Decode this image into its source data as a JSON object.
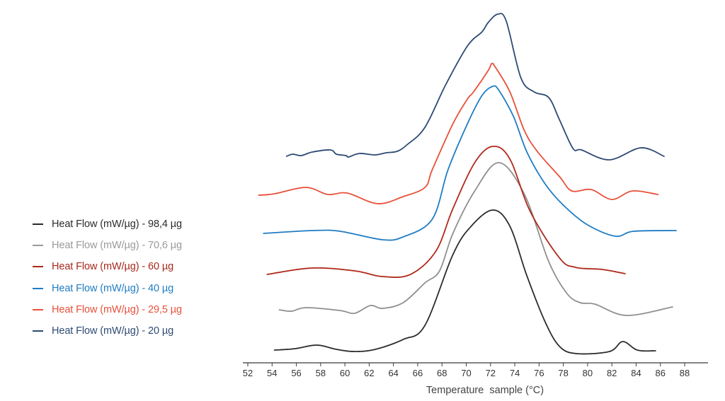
{
  "chart_data": {
    "type": "line",
    "title": "",
    "xlabel": "Temperature  sample (°C)",
    "ylabel": "",
    "xlim": [
      51.5,
      90.8
    ],
    "ylim": [
      0,
      100
    ],
    "y_units": "relative heat flow (stacked, arbitrary units)",
    "grid": false,
    "legend_position": "left",
    "x_ticks": [
      "52",
      "54",
      "56",
      "58",
      "60",
      "62",
      "64",
      "66",
      "68",
      "70",
      "72",
      "74",
      "76",
      "78",
      "80",
      "82",
      "84",
      "86",
      "88"
    ],
    "series": [
      {
        "name": "Heat Flow (mW/µg) - 98,4 µg",
        "color": "#2b2b2b",
        "legend_color": "#2b2b2b",
        "dotted": true,
        "points": [
          [
            54.2,
            3.6
          ],
          [
            55.9,
            4.0
          ],
          [
            57.7,
            5.0
          ],
          [
            59.3,
            3.8
          ],
          [
            60.8,
            3.2
          ],
          [
            62.5,
            3.8
          ],
          [
            64.8,
            6.6
          ],
          [
            66.6,
            10.6
          ],
          [
            68.9,
            30.6
          ],
          [
            70.4,
            38.6
          ],
          [
            72.2,
            43.2
          ],
          [
            73.6,
            38.6
          ],
          [
            75.0,
            24.6
          ],
          [
            76.5,
            11.6
          ],
          [
            77.7,
            4.6
          ],
          [
            79.1,
            2.6
          ],
          [
            81.8,
            3.2
          ],
          [
            82.9,
            6.0
          ],
          [
            84.1,
            3.6
          ],
          [
            85.6,
            3.4
          ]
        ]
      },
      {
        "name": "Heat Flow (mW/µg) - 70,6 µg",
        "color": "#8f8f8f",
        "legend_color": "#9a9a9a",
        "dotted": false,
        "points": [
          [
            54.6,
            15.0
          ],
          [
            55.6,
            14.6
          ],
          [
            56.8,
            15.6
          ],
          [
            59.6,
            14.8
          ],
          [
            60.8,
            14.0
          ],
          [
            62.1,
            16.2
          ],
          [
            63.1,
            15.4
          ],
          [
            64.8,
            17.0
          ],
          [
            66.6,
            22.6
          ],
          [
            67.8,
            26.0
          ],
          [
            68.9,
            36.6
          ],
          [
            70.7,
            48.6
          ],
          [
            72.7,
            56.6
          ],
          [
            74.8,
            47.6
          ],
          [
            76.8,
            28.6
          ],
          [
            78.3,
            19.6
          ],
          [
            79.4,
            17.0
          ],
          [
            80.6,
            16.6
          ],
          [
            83.2,
            13.4
          ],
          [
            87.0,
            15.8
          ]
        ]
      },
      {
        "name": "Heat Flow (mW/µg) - 60 µg",
        "color": "#b0281a",
        "legend_color": "#a8281c",
        "dotted": true,
        "points": [
          [
            53.6,
            25.0
          ],
          [
            57.3,
            26.8
          ],
          [
            60.8,
            26.0
          ],
          [
            63.1,
            24.4
          ],
          [
            65.4,
            25.0
          ],
          [
            67.5,
            31.6
          ],
          [
            68.9,
            43.6
          ],
          [
            70.7,
            56.6
          ],
          [
            72.2,
            61.2
          ],
          [
            73.6,
            57.6
          ],
          [
            75.3,
            42.6
          ],
          [
            77.7,
            29.6
          ],
          [
            79.0,
            27.0
          ],
          [
            81.2,
            26.4
          ],
          [
            83.1,
            25.2
          ]
        ]
      },
      {
        "name": "Heat Flow (mW/µg) - 40 µg",
        "color": "#1f7cc4",
        "legend_color": "#1f7cc4",
        "dotted": false,
        "points": [
          [
            53.3,
            36.6
          ],
          [
            57.3,
            37.4
          ],
          [
            59.6,
            37.2
          ],
          [
            63.1,
            34.8
          ],
          [
            64.8,
            35.6
          ],
          [
            67.2,
            40.6
          ],
          [
            68.5,
            54.6
          ],
          [
            70.1,
            67.6
          ],
          [
            71.3,
            75.6
          ],
          [
            72.2,
            78.2
          ],
          [
            72.7,
            77.0
          ],
          [
            73.9,
            69.6
          ],
          [
            75.0,
            59.6
          ],
          [
            76.5,
            50.6
          ],
          [
            78.0,
            44.6
          ],
          [
            80.0,
            39.0
          ],
          [
            82.3,
            35.8
          ],
          [
            83.8,
            37.2
          ],
          [
            87.3,
            37.4
          ]
        ]
      },
      {
        "name": "Heat Flow (mW/µg) - 29,5 µg",
        "color": "#e8503a",
        "legend_color": "#e8503a",
        "dotted": false,
        "points": [
          [
            52.9,
            47.4
          ],
          [
            54.2,
            47.8
          ],
          [
            56.8,
            49.6
          ],
          [
            58.6,
            47.6
          ],
          [
            60.2,
            48.0
          ],
          [
            62.7,
            45.0
          ],
          [
            64.8,
            47.0
          ],
          [
            66.6,
            49.6
          ],
          [
            67.2,
            54.6
          ],
          [
            68.9,
            67.6
          ],
          [
            70.1,
            74.6
          ],
          [
            70.6,
            76.6
          ],
          [
            71.8,
            82.6
          ],
          [
            72.1,
            84.6
          ],
          [
            72.4,
            83.6
          ],
          [
            73.6,
            76.6
          ],
          [
            74.8,
            65.6
          ],
          [
            75.9,
            59.6
          ],
          [
            77.7,
            52.6
          ],
          [
            78.7,
            48.6
          ],
          [
            80.3,
            49.0
          ],
          [
            82.0,
            46.2
          ],
          [
            83.7,
            48.6
          ],
          [
            85.8,
            47.6
          ]
        ]
      },
      {
        "name": "Heat Flow (mW/µg) - 20 µg",
        "color": "#2d4a73",
        "legend_color": "#2d4a73",
        "dotted": false,
        "points": [
          [
            55.2,
            58.4
          ],
          [
            55.7,
            59.0
          ],
          [
            56.4,
            58.6
          ],
          [
            57.3,
            59.6
          ],
          [
            58.8,
            60.2
          ],
          [
            59.3,
            59.0
          ],
          [
            60.1,
            58.6
          ],
          [
            60.3,
            58.2
          ],
          [
            61.2,
            59.2
          ],
          [
            62.5,
            58.8
          ],
          [
            63.4,
            59.4
          ],
          [
            64.3,
            59.8
          ],
          [
            65.1,
            61.6
          ],
          [
            66.6,
            66.6
          ],
          [
            68.3,
            78.6
          ],
          [
            70.1,
            89.6
          ],
          [
            71.3,
            93.6
          ],
          [
            71.8,
            96.2
          ],
          [
            72.6,
            98.6
          ],
          [
            73.3,
            96.6
          ],
          [
            74.5,
            80.6
          ],
          [
            75.6,
            76.6
          ],
          [
            76.8,
            75.0
          ],
          [
            77.7,
            68.6
          ],
          [
            78.8,
            60.6
          ],
          [
            79.5,
            60.2
          ],
          [
            81.8,
            57.4
          ],
          [
            84.4,
            60.8
          ],
          [
            86.3,
            58.4
          ]
        ]
      }
    ]
  }
}
